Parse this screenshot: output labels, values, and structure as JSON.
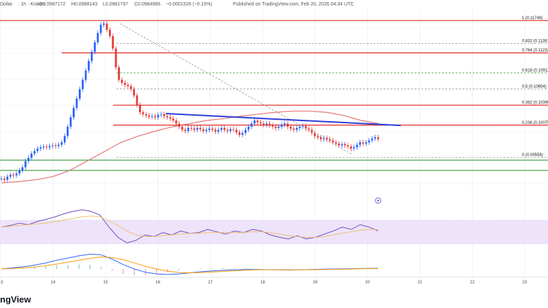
{
  "header": {
    "pair_suffix": "Dollar",
    "info": "· 1h · Kraken",
    "open": "O0.0987172",
    "high": "H0.0988143",
    "low": "L0.0981797",
    "close": "C0.0984966",
    "change": "−0.0001526 (−0.15%)",
    "published": "Published on TradingView.com, Feb 20, 2026 04:34 UTC"
  },
  "brand": {
    "label": "ngView"
  },
  "colors": {
    "up": "#2962ff",
    "down": "#e53935",
    "fib_line": "#e53935",
    "resistance_line": "#e53935",
    "support_line": "#43a047",
    "trendline": "#2a3ad8",
    "ma": "#e57373",
    "rsi": "#7e57c2",
    "rsi_ma": "#f0c070",
    "rsi_band": "#ede4fb",
    "macd": "#2962ff",
    "macd_signal": "#ff9800"
  },
  "chart_data": {
    "type": "candlestick",
    "x_ticks": [
      "13",
      "14",
      "15",
      "16",
      "17",
      "18",
      "19",
      "20",
      "21",
      "22",
      "23"
    ],
    "fib_levels": [
      {
        "ratio": "1",
        "value": "0.11749"
      },
      {
        "ratio": "0.832",
        "value": "0.11381"
      },
      {
        "ratio": "0.764",
        "value": "0.11232"
      },
      {
        "ratio": "0.618",
        "value": "0.10912"
      },
      {
        "ratio": "0.5",
        "value": "0.10654"
      },
      {
        "ratio": "0.382",
        "value": "0.10395"
      },
      {
        "ratio": "0.236",
        "value": "0.10075"
      },
      {
        "ratio": "0",
        "value": "0.09558"
      }
    ],
    "closes": [
      0.0922,
      0.092,
      0.0925,
      0.0928,
      0.0927,
      0.093,
      0.0935,
      0.094,
      0.095,
      0.0955,
      0.0962,
      0.0966,
      0.097,
      0.0972,
      0.0973,
      0.0972,
      0.0974,
      0.0975,
      0.0974,
      0.0976,
      0.098,
      0.099,
      0.1005,
      0.102,
      0.1035,
      0.105,
      0.1065,
      0.108,
      0.1095,
      0.111,
      0.1125,
      0.114,
      0.1155,
      0.1168,
      0.117,
      0.116,
      0.115,
      0.113,
      0.11,
      0.108,
      0.1075,
      0.1072,
      0.107,
      0.1065,
      0.1055,
      0.104,
      0.1028,
      0.1025,
      0.1023,
      0.1021,
      0.1022,
      0.102,
      0.1024,
      0.1025,
      0.1022,
      0.102,
      0.1018,
      0.1015,
      0.101,
      0.1005,
      0.1,
      0.0998,
      0.1003,
      0.1002,
      0.1,
      0.1003,
      0.1001,
      0.0998,
      0.1,
      0.1002,
      0.1,
      0.0997,
      0.1,
      0.1003,
      0.1,
      0.0998,
      0.1001,
      0.1,
      0.0996,
      0.0992,
      0.0995,
      0.1,
      0.1005,
      0.101,
      0.1015,
      0.1012,
      0.101,
      0.1008,
      0.101,
      0.1007,
      0.1005,
      0.1003,
      0.1005,
      0.1008,
      0.101,
      0.1005,
      0.1002,
      0.1,
      0.1003,
      0.1005,
      0.1006,
      0.1002,
      0.1,
      0.0995,
      0.099,
      0.0988,
      0.0985,
      0.0987,
      0.0985,
      0.0983,
      0.098,
      0.0978,
      0.0975,
      0.0977,
      0.0975,
      0.0973,
      0.097,
      0.0972,
      0.0976,
      0.098,
      0.0978,
      0.098,
      0.0983,
      0.0986,
      0.0988,
      0.0985
    ],
    "upper_line_value": 0.11232,
    "mid_resistance_value": 0.10395,
    "lower_resistance_value": 0.10075,
    "support_values": [
      0.09558,
      0.09452
    ],
    "trendline": {
      "start_index": 64,
      "start_value": 0.1026,
      "end_index": 200,
      "end_value": 0.1007
    },
    "ma_values": [
      0.0915,
      0.0917,
      0.092,
      0.0925,
      0.0935,
      0.095,
      0.0965,
      0.098,
      0.099,
      0.0998,
      0.1005,
      0.101,
      0.1015,
      0.1018,
      0.1022,
      0.1025,
      0.1028,
      0.103,
      0.103,
      0.1028,
      0.1023,
      0.1015,
      0.101
    ],
    "rsi_values": [
      55,
      57,
      60,
      58,
      62,
      65,
      68,
      72,
      75,
      77,
      75,
      70,
      55,
      42,
      35,
      38,
      45,
      43,
      48,
      45,
      50,
      47,
      48,
      52,
      49,
      46,
      50,
      48,
      52,
      50,
      45,
      42,
      40,
      44,
      40,
      42,
      46,
      50,
      55,
      52,
      58,
      55,
      50
    ],
    "rsi_ma_values": [
      55,
      56,
      57,
      58,
      59,
      60,
      62,
      64,
      66,
      68,
      69,
      68,
      63,
      57,
      50,
      45,
      43,
      43,
      44,
      45,
      46,
      47,
      47,
      48,
      48,
      48,
      48,
      48,
      49,
      49,
      48,
      46,
      44,
      43,
      42,
      42,
      43,
      45,
      47,
      49,
      51,
      52,
      52
    ],
    "macd_values": [
      0,
      0.1,
      0.2,
      0.35,
      0.55,
      0.8,
      1.0,
      1.2,
      1.35,
      1.3,
      0.9,
      0.4,
      0.0,
      -0.3,
      -0.45,
      -0.5,
      -0.45,
      -0.35,
      -0.25,
      -0.18,
      -0.12,
      -0.08,
      -0.05,
      -0.05,
      -0.06,
      -0.08,
      -0.1,
      -0.08,
      -0.05,
      -0.02,
      0,
      0.02,
      0.04,
      0.05,
      0.06
    ],
    "signal_values": [
      0,
      0.05,
      0.1,
      0.18,
      0.3,
      0.45,
      0.62,
      0.8,
      0.97,
      1.1,
      1.05,
      0.85,
      0.55,
      0.25,
      0.0,
      -0.2,
      -0.32,
      -0.35,
      -0.32,
      -0.28,
      -0.22,
      -0.16,
      -0.11,
      -0.08,
      -0.07,
      -0.07,
      -0.08,
      -0.08,
      -0.07,
      -0.05,
      -0.03,
      -0.01,
      0.01,
      0.03,
      0.04
    ]
  }
}
